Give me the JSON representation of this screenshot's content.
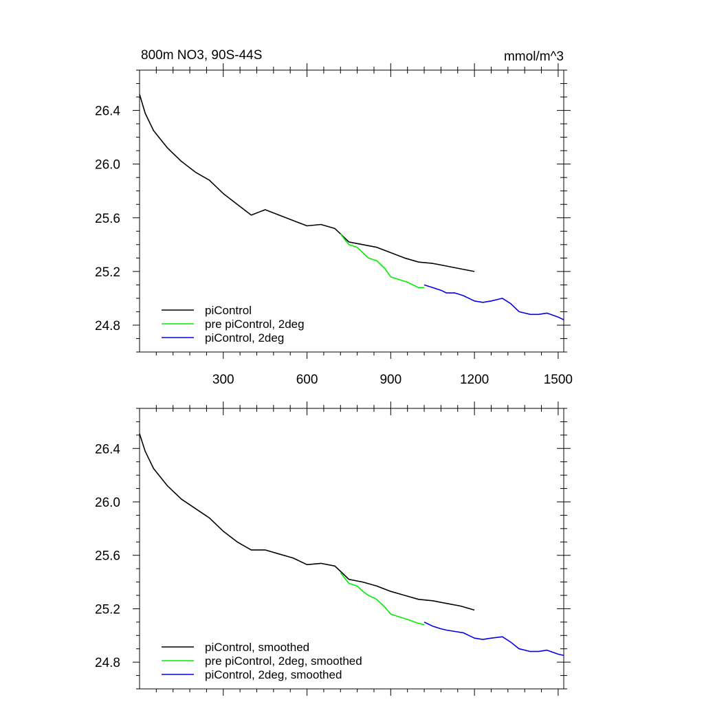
{
  "colors": {
    "black": "#000000",
    "green": "#00ee00",
    "blue": "#0000e6"
  },
  "chart_data": [
    {
      "type": "line",
      "title": "800m NO3, 90S-44S",
      "units": "mmol/m^3",
      "xlim": [
        0,
        1520
      ],
      "ylim": [
        24.6,
        26.7
      ],
      "xticks": [
        300,
        600,
        900,
        1200,
        1500
      ],
      "xtick_labels": [
        "300",
        "600",
        "900",
        "1200",
        "1500"
      ],
      "yticks": [
        24.8,
        25.2,
        25.6,
        26.0,
        26.4
      ],
      "ytick_labels": [
        "24.8",
        "25.2",
        "25.6",
        "26.0",
        "26.4"
      ],
      "legend_position": "bottom-left",
      "series": [
        {
          "name": "piControl",
          "color": "#000000",
          "x": [
            0,
            20,
            50,
            100,
            150,
            200,
            250,
            300,
            350,
            400,
            450,
            500,
            550,
            600,
            650,
            700,
            720,
            750,
            800,
            850,
            900,
            950,
            1000,
            1050,
            1100,
            1150,
            1200
          ],
          "y": [
            26.52,
            26.38,
            26.25,
            26.12,
            26.02,
            25.94,
            25.88,
            25.78,
            25.7,
            25.62,
            25.66,
            25.62,
            25.58,
            25.54,
            25.55,
            25.52,
            25.48,
            25.42,
            25.4,
            25.38,
            25.34,
            25.3,
            25.27,
            25.26,
            25.24,
            25.22,
            25.2
          ]
        },
        {
          "name": "pre piControl, 2deg",
          "color": "#00ee00",
          "x": [
            720,
            750,
            780,
            800,
            820,
            850,
            880,
            900,
            930,
            960,
            1000,
            1020
          ],
          "y": [
            25.48,
            25.4,
            25.38,
            25.34,
            25.3,
            25.28,
            25.22,
            25.16,
            25.14,
            25.12,
            25.08,
            25.08
          ]
        },
        {
          "name": "piControl, 2deg",
          "color": "#0000e6",
          "x": [
            1020,
            1050,
            1080,
            1100,
            1130,
            1160,
            1200,
            1230,
            1260,
            1300,
            1330,
            1360,
            1400,
            1430,
            1460,
            1500,
            1520
          ],
          "y": [
            25.1,
            25.08,
            25.06,
            25.04,
            25.04,
            25.02,
            24.98,
            24.97,
            24.98,
            25.0,
            24.96,
            24.9,
            24.88,
            24.88,
            24.89,
            24.86,
            24.84
          ]
        }
      ]
    },
    {
      "type": "line",
      "xlim": [
        0,
        1520
      ],
      "ylim": [
        24.6,
        26.7
      ],
      "xticks": [
        300,
        600,
        900,
        1200,
        1500
      ],
      "yticks": [
        24.8,
        25.2,
        25.6,
        26.0,
        26.4
      ],
      "ytick_labels": [
        "24.8",
        "25.2",
        "25.6",
        "26.0",
        "26.4"
      ],
      "legend_position": "bottom-left",
      "series": [
        {
          "name": "piControl, smoothed",
          "color": "#000000",
          "x": [
            0,
            20,
            50,
            100,
            150,
            200,
            250,
            300,
            350,
            400,
            450,
            500,
            550,
            600,
            650,
            700,
            720,
            750,
            800,
            850,
            900,
            950,
            1000,
            1050,
            1100,
            1150,
            1200
          ],
          "y": [
            26.51,
            26.38,
            26.25,
            26.12,
            26.02,
            25.95,
            25.88,
            25.78,
            25.7,
            25.64,
            25.64,
            25.61,
            25.58,
            25.53,
            25.54,
            25.52,
            25.48,
            25.42,
            25.4,
            25.37,
            25.33,
            25.3,
            25.27,
            25.26,
            25.24,
            25.22,
            25.19
          ]
        },
        {
          "name": "pre piControl, 2deg, smoothed",
          "color": "#00ee00",
          "x": [
            720,
            750,
            780,
            800,
            820,
            850,
            880,
            900,
            930,
            960,
            1000,
            1020
          ],
          "y": [
            25.47,
            25.39,
            25.37,
            25.33,
            25.3,
            25.27,
            25.21,
            25.16,
            25.14,
            25.12,
            25.09,
            25.08
          ]
        },
        {
          "name": "piControl, 2deg, smoothed",
          "color": "#0000e6",
          "x": [
            1020,
            1050,
            1080,
            1100,
            1130,
            1160,
            1200,
            1230,
            1260,
            1300,
            1330,
            1360,
            1400,
            1430,
            1460,
            1500,
            1520
          ],
          "y": [
            25.1,
            25.07,
            25.05,
            25.04,
            25.03,
            25.02,
            24.98,
            24.97,
            24.98,
            24.99,
            24.95,
            24.9,
            24.88,
            24.88,
            24.89,
            24.86,
            24.85
          ]
        }
      ]
    }
  ]
}
